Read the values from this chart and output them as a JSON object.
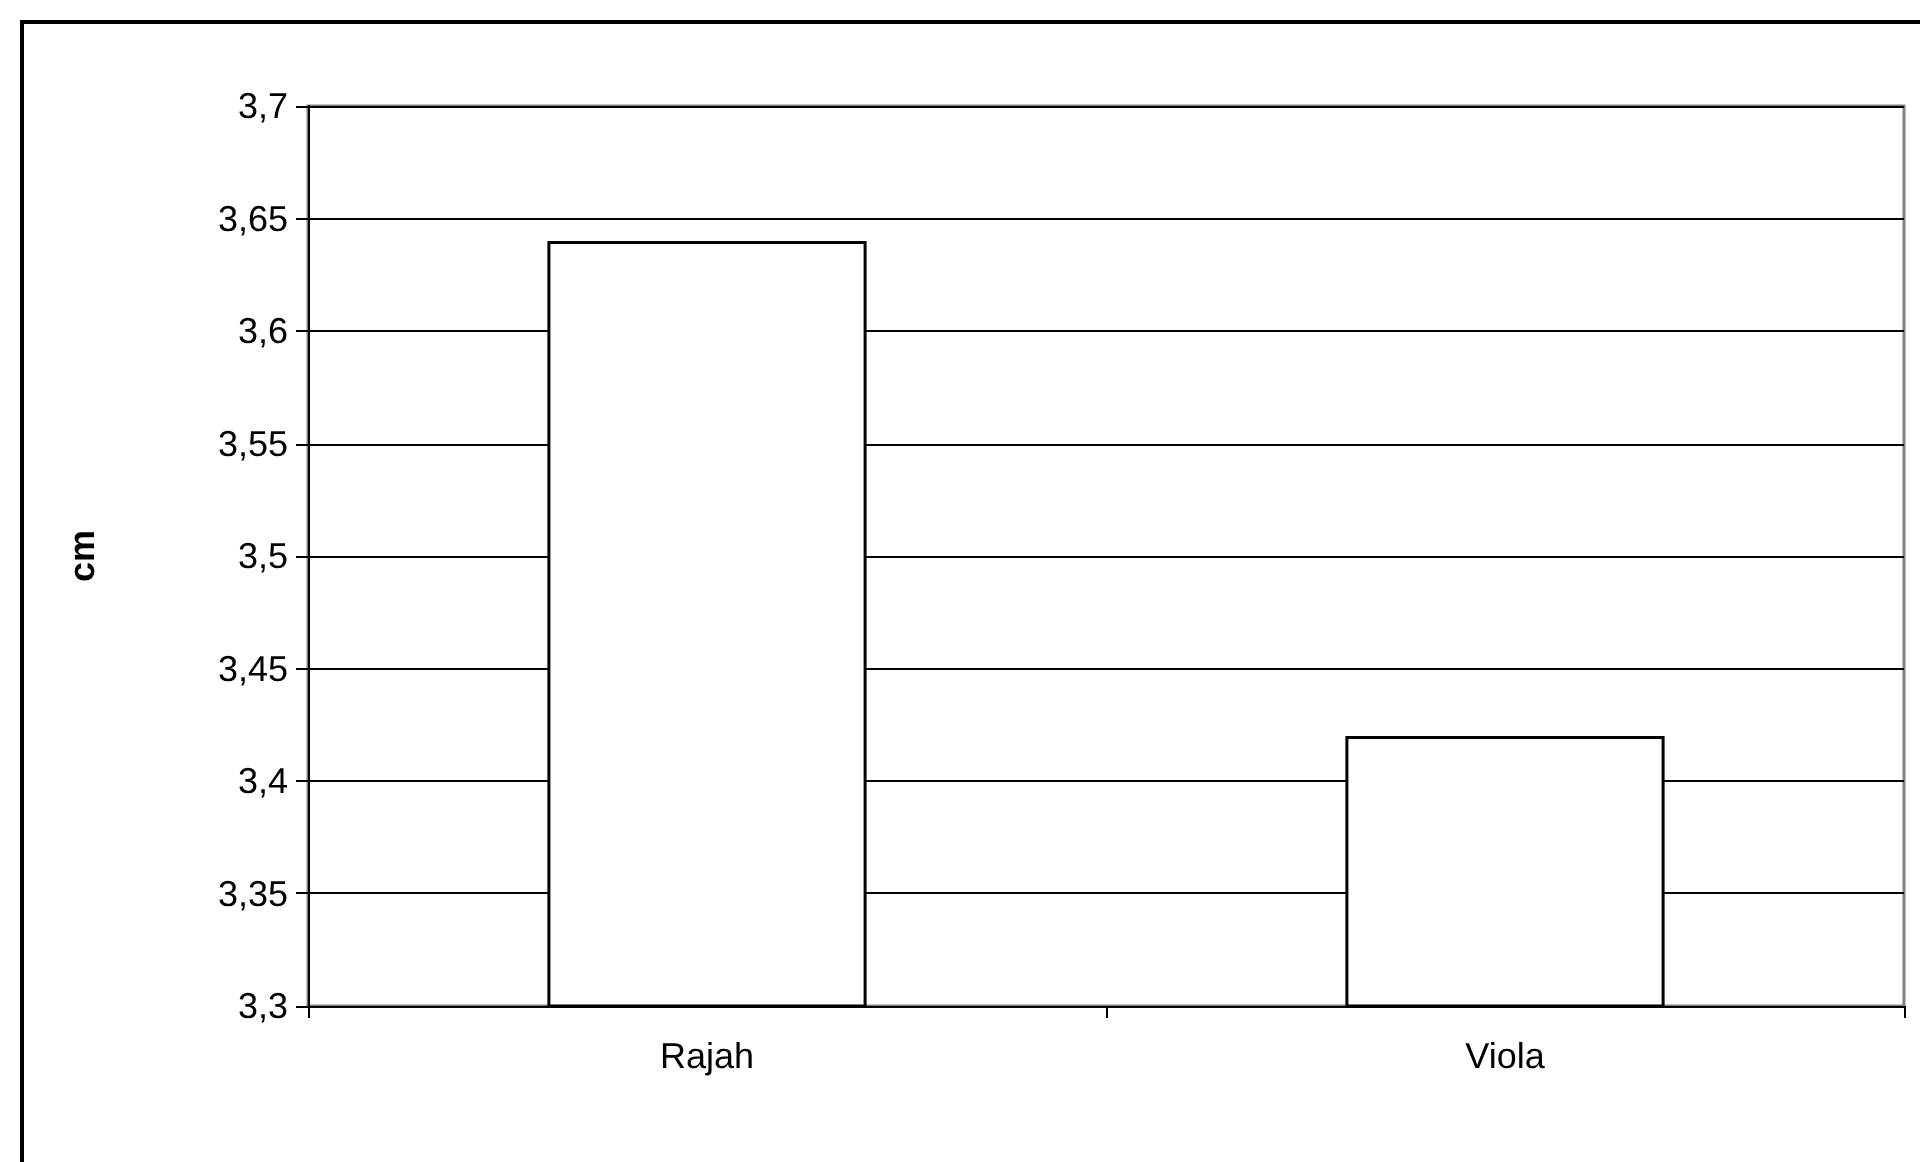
{
  "chart_data": {
    "type": "bar",
    "ylabel": "cm",
    "categories": [
      "Rajah",
      "Viola"
    ],
    "values": [
      3.64,
      3.42
    ],
    "color": "#ffffff",
    "ylim": [
      3.3,
      3.7
    ],
    "yticks": [
      {
        "value": 3.3,
        "label": "3,3"
      },
      {
        "value": 3.35,
        "label": "3,35"
      },
      {
        "value": 3.4,
        "label": "3,4"
      },
      {
        "value": 3.45,
        "label": "3,45"
      },
      {
        "value": 3.5,
        "label": "3,5"
      },
      {
        "value": 3.55,
        "label": "3,55"
      },
      {
        "value": 3.6,
        "label": "3,6"
      },
      {
        "value": 3.65,
        "label": "3,65"
      },
      {
        "value": 3.7,
        "label": "3,7"
      }
    ],
    "grid": "y"
  }
}
